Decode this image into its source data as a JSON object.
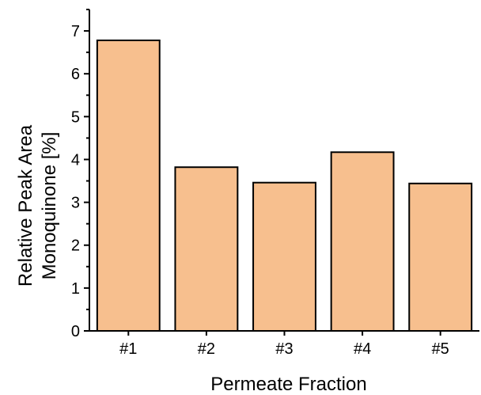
{
  "chart_data": {
    "type": "bar",
    "categories": [
      "#1",
      "#2",
      "#3",
      "#4",
      "#5"
    ],
    "values": [
      6.78,
      3.82,
      3.46,
      4.17,
      3.44
    ],
    "xlabel": "Permeate Fraction",
    "ylabel_lines": [
      "Relative Peak Area",
      "Monoquinone [%]"
    ],
    "ylim": [
      0,
      7.5
    ],
    "yticks": [
      0,
      1,
      2,
      3,
      4,
      5,
      6,
      7
    ],
    "bar_color": "#F7BF8E",
    "edge_color": "#000000",
    "grid": false,
    "legend": "none"
  }
}
